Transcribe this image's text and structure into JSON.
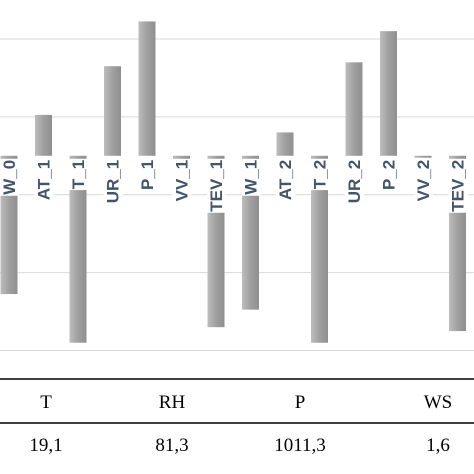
{
  "chart_data": {
    "type": "bar",
    "categories": [
      "W_0",
      "AT_1",
      "T_1",
      "UR_1",
      "P_1",
      "VV_1",
      "TEV_1",
      "W_1",
      "AT_2",
      "T_2",
      "UR_2",
      "P_2",
      "VV_2",
      "TEV_2"
    ],
    "values": [
      -0.71,
      0.21,
      -0.96,
      0.46,
      0.69,
      -0.05,
      -0.88,
      -0.79,
      0.12,
      -0.96,
      0.48,
      0.64,
      -0.01,
      -0.9
    ],
    "ylim": [
      -1.1,
      0.8
    ],
    "grid": true,
    "bar_color": "#a6a6a6",
    "label_color": "#44546a"
  },
  "summary_table": {
    "headers": [
      "T",
      "RH",
      "P",
      "WS"
    ],
    "values": [
      "19,1",
      "81,3",
      "1011,3",
      "1,6"
    ]
  }
}
